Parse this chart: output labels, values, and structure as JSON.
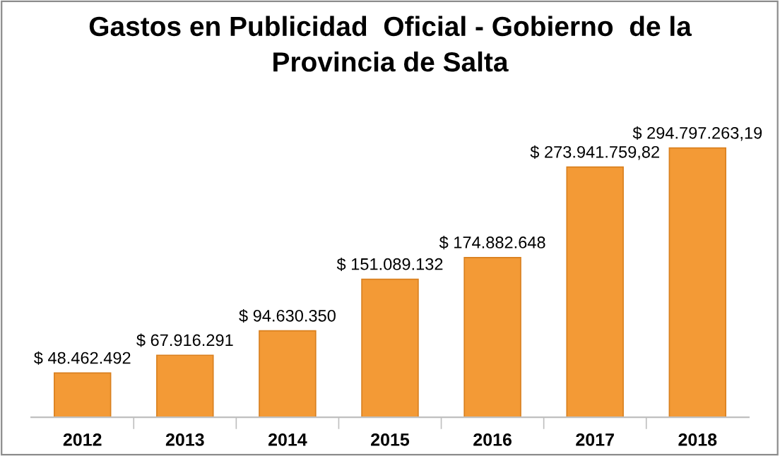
{
  "chart_data": {
    "type": "bar",
    "title": "Gastos en Publicidad  Oficial - Gobierno  de la\nProvincia de Salta",
    "categories": [
      "2012",
      "2013",
      "2014",
      "2015",
      "2016",
      "2017",
      "2018"
    ],
    "values": [
      48462492,
      67916291,
      94630350,
      151089132,
      174882648,
      273941759.82,
      294797263.19
    ],
    "value_labels": [
      "$ 48.462.492",
      "$ 67.916.291",
      "$ 94.630.350",
      "$ 151.089.132",
      "$ 174.882.648",
      "$ 273.941.759,82",
      "$ 294.797.263,19"
    ],
    "color": "#f39a36",
    "tick_labels": "x"
  }
}
